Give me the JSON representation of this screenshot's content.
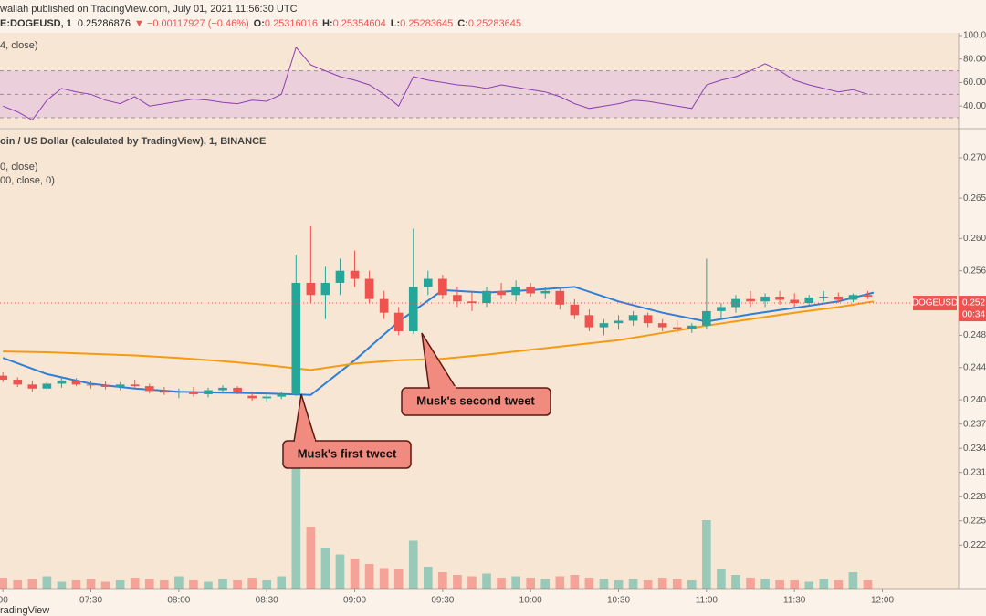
{
  "header": {
    "published": "wallah published on TradingView.com, July 01, 2021 11:56:30 UTC",
    "symbol": "E:DOGEUSD, 1",
    "price": "0.25286876",
    "change": "▼ −0.00117927 (−0.46%)",
    "ohlc": [
      {
        "label": "O:",
        "value": "0.25316016"
      },
      {
        "label": "H:",
        "value": "0.25354604"
      },
      {
        "label": "L:",
        "value": "0.25283645"
      },
      {
        "label": "C:",
        "value": "0.25283645"
      }
    ]
  },
  "annotations": [
    "Musk's first tweet",
    "Musk's second tweet"
  ],
  "footer": "radingView",
  "chart_data": [
    {
      "type": "line",
      "title": "4, close)",
      "color": "#8e3fb0",
      "band_color": "#e6c6de",
      "x": [
        420,
        425,
        430,
        435,
        440,
        445,
        450,
        455,
        460,
        465,
        470,
        475,
        480,
        485,
        490,
        495,
        500,
        505,
        510,
        515,
        520,
        525,
        530,
        535,
        540,
        545,
        550,
        555,
        560,
        565,
        570,
        575,
        580,
        585,
        590,
        595,
        600,
        605,
        610,
        615,
        620,
        625,
        630,
        635,
        640,
        645,
        650,
        655,
        660,
        665,
        670,
        675,
        680,
        685,
        690,
        695,
        700,
        705,
        710,
        715
      ],
      "values": [
        40,
        35,
        28,
        45,
        55,
        52,
        50,
        45,
        42,
        48,
        40,
        42,
        44,
        46,
        45,
        43,
        42,
        45,
        44,
        50,
        90,
        75,
        70,
        65,
        62,
        58,
        50,
        40,
        65,
        62,
        60,
        58,
        57,
        55,
        58,
        56,
        54,
        52,
        48,
        42,
        38,
        40,
        42,
        45,
        44,
        42,
        40,
        38,
        58,
        62,
        65,
        70,
        76,
        70,
        62,
        58,
        55,
        52,
        54,
        50
      ],
      "levels": [
        30,
        50,
        70
      ],
      "xlim": [
        419,
        746
      ],
      "ylim": [
        21.5,
        102.3
      ],
      "yticks": [
        {
          "value": 100,
          "label": "100.00"
        },
        {
          "value": 80,
          "label": "80.00"
        },
        {
          "value": 60,
          "label": "60.00"
        },
        {
          "value": 40,
          "label": "40.00"
        }
      ]
    },
    {
      "type": "candlestick",
      "title": "oin / US Dollar (calculated by TradingView), 1, BINANCE",
      "up_color": "#26a69a",
      "down_color": "#ef5350",
      "x": [
        420,
        425,
        430,
        435,
        440,
        445,
        450,
        455,
        460,
        465,
        470,
        475,
        480,
        485,
        490,
        495,
        500,
        505,
        510,
        515,
        520,
        525,
        530,
        535,
        540,
        545,
        550,
        555,
        560,
        565,
        570,
        575,
        580,
        585,
        590,
        595,
        600,
        605,
        610,
        615,
        620,
        625,
        630,
        635,
        640,
        645,
        650,
        655,
        660,
        665,
        670,
        675,
        680,
        685,
        690,
        695,
        700,
        705,
        710,
        715
      ],
      "open": [
        0.243,
        0.2425,
        0.2419,
        0.2414,
        0.242,
        0.2424,
        0.2419,
        0.2418,
        0.2416,
        0.2419,
        0.2417,
        0.2411,
        0.2409,
        0.241,
        0.2407,
        0.2412,
        0.2415,
        0.2405,
        0.2402,
        0.2404,
        0.2407,
        0.2545,
        0.253,
        0.2545,
        0.256,
        0.255,
        0.2525,
        0.2508,
        0.2485,
        0.254,
        0.255,
        0.253,
        0.2522,
        0.252,
        0.2535,
        0.253,
        0.254,
        0.2532,
        0.2535,
        0.2518,
        0.2505,
        0.249,
        0.2495,
        0.2498,
        0.2505,
        0.2495,
        0.249,
        0.2488,
        0.2492,
        0.251,
        0.2515,
        0.2525,
        0.2522,
        0.2528,
        0.2524,
        0.252,
        0.2527,
        0.2528,
        0.2524,
        0.253
      ],
      "high": [
        0.2434,
        0.2428,
        0.2424,
        0.2422,
        0.2428,
        0.2427,
        0.2424,
        0.2423,
        0.2422,
        0.2425,
        0.242,
        0.2416,
        0.2414,
        0.2416,
        0.2415,
        0.2418,
        0.2417,
        0.241,
        0.2407,
        0.241,
        0.258,
        0.2615,
        0.2565,
        0.2575,
        0.2585,
        0.256,
        0.2535,
        0.2515,
        0.2612,
        0.256,
        0.2555,
        0.254,
        0.2535,
        0.254,
        0.2545,
        0.2548,
        0.2545,
        0.254,
        0.2538,
        0.2525,
        0.2512,
        0.25,
        0.2505,
        0.251,
        0.2508,
        0.25,
        0.2498,
        0.2495,
        0.2575,
        0.252,
        0.253,
        0.2535,
        0.2532,
        0.2535,
        0.2532,
        0.253,
        0.2535,
        0.2533,
        0.2532,
        0.2535
      ],
      "low": [
        0.2422,
        0.2416,
        0.241,
        0.2411,
        0.2415,
        0.2417,
        0.2414,
        0.2413,
        0.2412,
        0.2414,
        0.2408,
        0.2406,
        0.2402,
        0.2404,
        0.2403,
        0.2408,
        0.2407,
        0.2399,
        0.2397,
        0.2401,
        0.2405,
        0.252,
        0.25,
        0.253,
        0.254,
        0.252,
        0.25,
        0.248,
        0.2482,
        0.253,
        0.2525,
        0.2515,
        0.251,
        0.2515,
        0.2525,
        0.2522,
        0.2528,
        0.2525,
        0.2512,
        0.25,
        0.2485,
        0.248,
        0.2487,
        0.2492,
        0.249,
        0.2485,
        0.2482,
        0.2483,
        0.2488,
        0.25,
        0.2508,
        0.2515,
        0.2515,
        0.2518,
        0.2515,
        0.2518,
        0.2522,
        0.252,
        0.2521,
        0.2525
      ],
      "close": [
        0.2425,
        0.2419,
        0.2414,
        0.242,
        0.2424,
        0.2419,
        0.2418,
        0.2416,
        0.2419,
        0.2417,
        0.2411,
        0.2409,
        0.241,
        0.2407,
        0.2412,
        0.2415,
        0.2409,
        0.2402,
        0.2404,
        0.2407,
        0.2545,
        0.253,
        0.2545,
        0.256,
        0.255,
        0.2525,
        0.2508,
        0.2485,
        0.254,
        0.255,
        0.253,
        0.2522,
        0.252,
        0.2535,
        0.253,
        0.254,
        0.2532,
        0.2535,
        0.2518,
        0.2505,
        0.249,
        0.2495,
        0.2498,
        0.2505,
        0.2495,
        0.249,
        0.2488,
        0.2492,
        0.251,
        0.2515,
        0.2525,
        0.2522,
        0.2528,
        0.2524,
        0.252,
        0.2527,
        0.2528,
        0.2524,
        0.253,
        0.2528
      ],
      "volume": [
        8,
        6,
        7,
        9,
        5,
        6,
        7,
        5,
        6,
        8,
        7,
        6,
        9,
        6,
        5,
        7,
        6,
        8,
        6,
        9,
        100,
        45,
        30,
        25,
        22,
        18,
        15,
        14,
        35,
        16,
        12,
        10,
        9,
        11,
        8,
        9,
        8,
        7,
        9,
        10,
        8,
        7,
        6,
        7,
        6,
        8,
        7,
        6,
        50,
        14,
        10,
        8,
        7,
        6,
        6,
        5,
        7,
        6,
        12,
        6
      ],
      "series": [
        {
          "name": "0, close)",
          "color": "#2f7fd6",
          "x": [
            420,
            435,
            450,
            465,
            480,
            495,
            510,
            525,
            540,
            555,
            570,
            585,
            600,
            615,
            630,
            645,
            660,
            675,
            690,
            705,
            717
          ],
          "values": [
            0.2452,
            0.2432,
            0.242,
            0.2414,
            0.241,
            0.2409,
            0.2408,
            0.2406,
            0.2449,
            0.2497,
            0.2536,
            0.2533,
            0.2536,
            0.254,
            0.2522,
            0.2508,
            0.2497,
            0.2506,
            0.2514,
            0.2522,
            0.2533
          ]
        },
        {
          "name": "00, close, 0)",
          "color": "#f59b12",
          "x": [
            420,
            435,
            450,
            465,
            480,
            495,
            510,
            525,
            540,
            555,
            570,
            585,
            600,
            615,
            630,
            645,
            660,
            675,
            690,
            705,
            717
          ],
          "values": [
            0.246,
            0.2459,
            0.2457,
            0.2455,
            0.2452,
            0.2448,
            0.2443,
            0.2437,
            0.2445,
            0.2449,
            0.2451,
            0.2456,
            0.2462,
            0.2468,
            0.2474,
            0.2483,
            0.2492,
            0.25,
            0.2508,
            0.2515,
            0.2522
          ]
        }
      ],
      "last_price": {
        "symbol": "DOGEUSD",
        "value": 0.252,
        "countdown": "00:34",
        "color": "#ef5350"
      },
      "xlim": [
        419,
        746
      ],
      "ylim": [
        0.2166,
        0.2735
      ],
      "xticks": [
        {
          "value": 420,
          "label": "00"
        },
        {
          "value": 450,
          "label": "07:30"
        },
        {
          "value": 480,
          "label": "08:00"
        },
        {
          "value": 510,
          "label": "08:30"
        },
        {
          "value": 540,
          "label": "09:00"
        },
        {
          "value": 570,
          "label": "09:30"
        },
        {
          "value": 600,
          "label": "10:00"
        },
        {
          "value": 630,
          "label": "10:30"
        },
        {
          "value": 660,
          "label": "11:00"
        },
        {
          "value": 690,
          "label": "11:30"
        },
        {
          "value": 720,
          "label": "12:00"
        }
      ],
      "yticks": [
        {
          "value": 0.27,
          "label": "0.270"
        },
        0.265,
        {
          "value": 0.26,
          "label": "0.260"
        },
        0.256,
        0.248,
        0.244,
        {
          "value": 0.24,
          "label": "0.240"
        },
        0.237,
        0.234,
        0.231,
        0.228,
        0.225,
        0.222
      ]
    }
  ]
}
